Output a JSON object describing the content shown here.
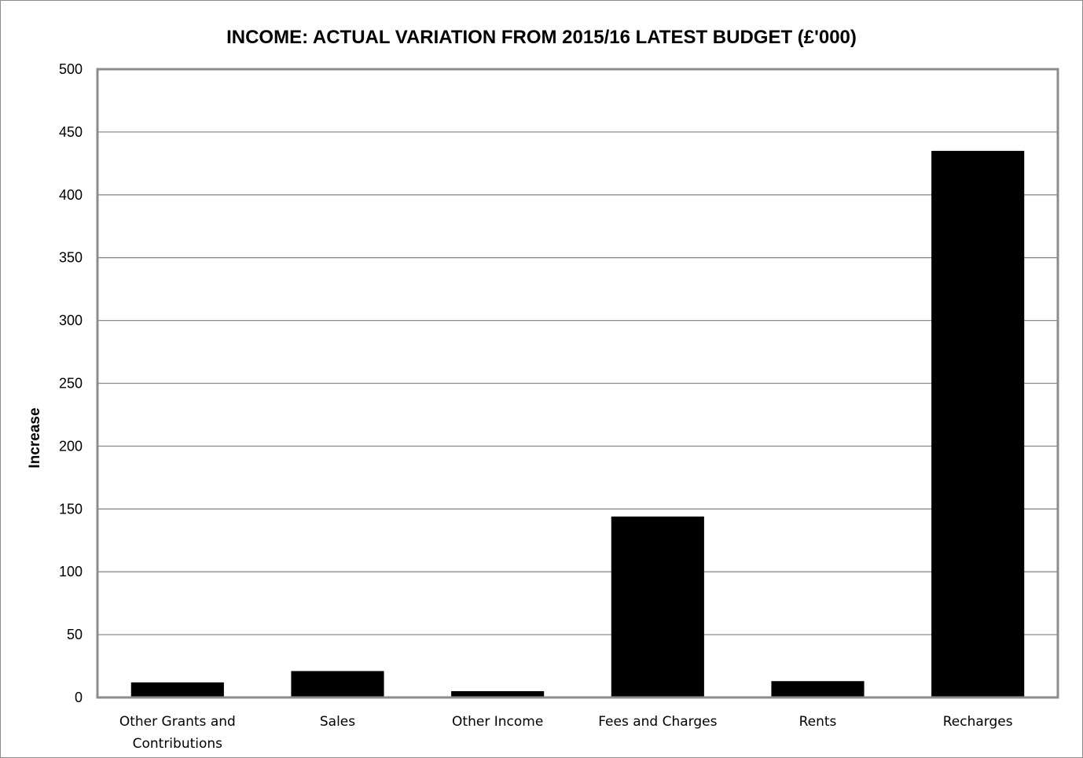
{
  "chart_data": {
    "type": "bar",
    "title": "INCOME: ACTUAL VARIATION FROM 2015/16 LATEST BUDGET (£'000)",
    "xlabel": "",
    "ylabel": "Increase",
    "ylim": [
      0,
      500
    ],
    "yticks": [
      0,
      50,
      100,
      150,
      200,
      250,
      300,
      350,
      400,
      450,
      500
    ],
    "categories": [
      [
        "Other Grants and",
        "Contributions"
      ],
      [
        "Sales"
      ],
      [
        "Other Income"
      ],
      [
        "Fees and Charges"
      ],
      [
        "Rents"
      ],
      [
        "Recharges"
      ]
    ],
    "values": [
      12,
      21,
      5,
      144,
      13,
      435
    ],
    "grid": true,
    "legend": "none",
    "colors": {
      "bar": "#000000",
      "grid": "#8c8c8c",
      "plot_border": "#8c8c8c"
    }
  }
}
